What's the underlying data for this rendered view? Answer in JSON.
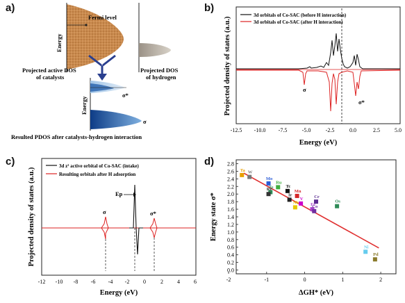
{
  "panel_a": {
    "label": "a)",
    "fermi_level": "Fermi level",
    "energy_top": "Energy",
    "energy_bottom": "Energy",
    "active_dos_line1": "Projected active DOS",
    "active_dos_line2": "of catalysts",
    "hydrogen_dos_line1": "Projected DOS",
    "hydrogen_dos_line2": "of hydrogen",
    "sigma_star": "σ*",
    "sigma": "σ",
    "caption": "Resulted PDOS after catalysts-hydrogen interaction"
  },
  "panel_b": {
    "label": "b)",
    "legend_black": "3d orbitals of Co-SAC (before H interaction)",
    "legend_red": "3d orbitals of Co-SAC (after H interaction)",
    "sigma": "σ",
    "sigma_star": "σ*",
    "xlabel": "Energy (eV)",
    "ylabel": "Projected density of states (a.u.)",
    "xticks": [
      "-12.5",
      "-10.0",
      "-7.5",
      "-5.0",
      "-2.5",
      "0.0",
      "2.5",
      "5.0"
    ]
  },
  "panel_c": {
    "label": "c)",
    "legend_black": "3d z² active orbital of Co-SAC (intake)",
    "legend_red": "Resulting orbitals after H adsorption",
    "ep": "Ep",
    "sigma": "σ",
    "sigma_star": "σ*",
    "xlabel": "Energy (eV)",
    "ylabel": "Projected density of states (a.u.)",
    "xticks": [
      "-12",
      "-10",
      "-8",
      "-6",
      "-4",
      "-2",
      "0",
      "2",
      "4",
      "6"
    ]
  },
  "panel_d": {
    "label": "d)",
    "xlabel": "ΔGH* (eV)",
    "ylabel": "Energy state σ*",
    "xticks": [
      "-2",
      "-1",
      "0",
      "1",
      "2"
    ],
    "yticks": [
      "0.0",
      "0.2",
      "0.4",
      "0.6",
      "0.8",
      "1.0",
      "1.2",
      "1.4",
      "1.6",
      "1.8",
      "2.0",
      "2.2",
      "2.4",
      "2.6",
      "2.8"
    ]
  },
  "chart_data": [
    {
      "type": "scatter",
      "panel": "d",
      "xlabel": "ΔGH* (eV)",
      "ylabel": "Energy state σ*",
      "xlim": [
        -1.8,
        2.4
      ],
      "ylim": [
        -0.1,
        2.9
      ],
      "points": [
        {
          "label": "Ta",
          "x": -1.65,
          "y": 2.5,
          "color": "#e8a000"
        },
        {
          "label": "W",
          "x": -1.45,
          "y": 2.45,
          "color": "#777777"
        },
        {
          "label": "Mo",
          "x": -0.95,
          "y": 2.28,
          "color": "#2a5bd7"
        },
        {
          "label": "Ru",
          "x": -0.7,
          "y": 2.18,
          "color": "#3fae3f"
        },
        {
          "label": "Tc",
          "x": -0.45,
          "y": 2.08,
          "color": "#111111"
        },
        {
          "label": "Te",
          "x": -0.9,
          "y": 2.05,
          "color": "#2e8b57"
        },
        {
          "label": "Re",
          "x": -0.95,
          "y": 2.0,
          "color": "#333333"
        },
        {
          "label": "Mn",
          "x": -0.2,
          "y": 1.95,
          "color": "#d62728"
        },
        {
          "label": "Ir",
          "x": -0.4,
          "y": 1.85,
          "color": "#222222"
        },
        {
          "label": "Cr",
          "x": 0.3,
          "y": 1.8,
          "color": "#5b2c91"
        },
        {
          "label": "V",
          "x": -0.1,
          "y": 1.75,
          "color": "#cc00cc"
        },
        {
          "label": "Os",
          "x": 0.85,
          "y": 1.68,
          "color": "#2e8b57"
        },
        {
          "label": "Nb",
          "x": -0.25,
          "y": 1.65,
          "color": "#e6c800"
        },
        {
          "label": "Fe",
          "x": 0.2,
          "y": 1.6,
          "color": "#aa44cc"
        },
        {
          "label": "Co",
          "x": 0.25,
          "y": 1.55,
          "color": "#7030a0"
        },
        {
          "label": "Ni",
          "x": 1.6,
          "y": 0.48,
          "color": "#66ccee"
        },
        {
          "label": "Pd",
          "x": 1.85,
          "y": 0.28,
          "color": "#8a7a2a"
        }
      ],
      "fit_line": {
        "x": [
          -1.6,
          1.95
        ],
        "y": [
          2.55,
          0.58
        ],
        "color": "#e03030"
      }
    }
  ]
}
